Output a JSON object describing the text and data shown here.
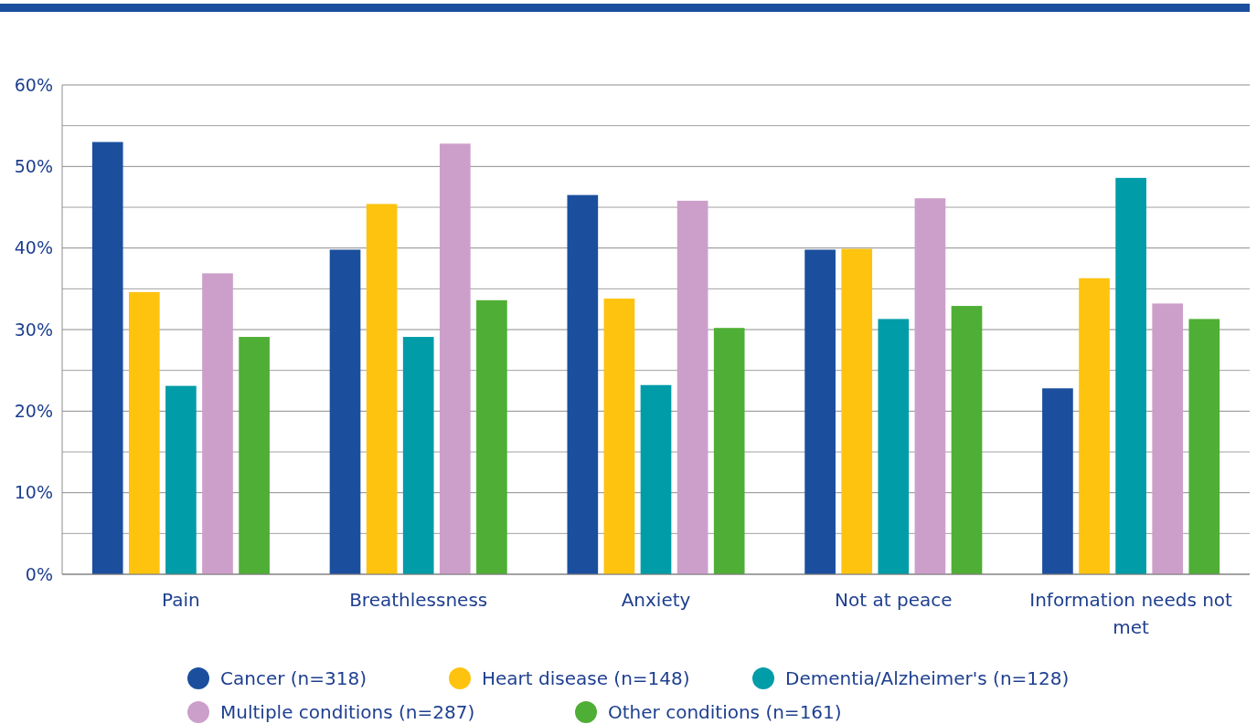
{
  "chart_data": {
    "type": "bar",
    "categories": [
      "Pain",
      "Breathlessness",
      "Anxiety",
      "Not at peace",
      "Information needs not met"
    ],
    "series": [
      {
        "name": "Cancer (n=318)",
        "color": "#1b4f9e",
        "values": [
          53.0,
          39.8,
          46.5,
          39.8,
          22.8
        ]
      },
      {
        "name": "Heart disease (n=148)",
        "color": "#fdc30e",
        "values": [
          34.6,
          45.4,
          33.8,
          39.9,
          36.3
        ]
      },
      {
        "name": "Dementia/Alzheimer's (n=128)",
        "color": "#009ca8",
        "values": [
          23.1,
          29.1,
          23.2,
          31.3,
          48.6
        ]
      },
      {
        "name": "Multiple conditions (n=287)",
        "color": "#cc9fcb",
        "values": [
          36.9,
          52.8,
          45.8,
          46.1,
          33.2
        ]
      },
      {
        "name": "Other conditions (n=161)",
        "color": "#4fae35",
        "values": [
          29.1,
          33.6,
          30.2,
          32.9,
          31.3
        ]
      }
    ],
    "ylim": [
      0,
      60
    ],
    "yticks": [
      {
        "value": 0,
        "label": "0%"
      },
      {
        "value": 5,
        "label": null
      },
      {
        "value": 10,
        "label": "10%"
      },
      {
        "value": 15,
        "label": null
      },
      {
        "value": 20,
        "label": "20%"
      },
      {
        "value": 25,
        "label": null
      },
      {
        "value": 30,
        "label": "30%"
      },
      {
        "value": 35,
        "label": null
      },
      {
        "value": 40,
        "label": "40%"
      },
      {
        "value": 45,
        "label": null
      },
      {
        "value": 50,
        "label": "50%"
      },
      {
        "value": 55,
        "label": null
      },
      {
        "value": 60,
        "label": "60%"
      }
    ],
    "grid": "y",
    "legend": "bottom"
  }
}
